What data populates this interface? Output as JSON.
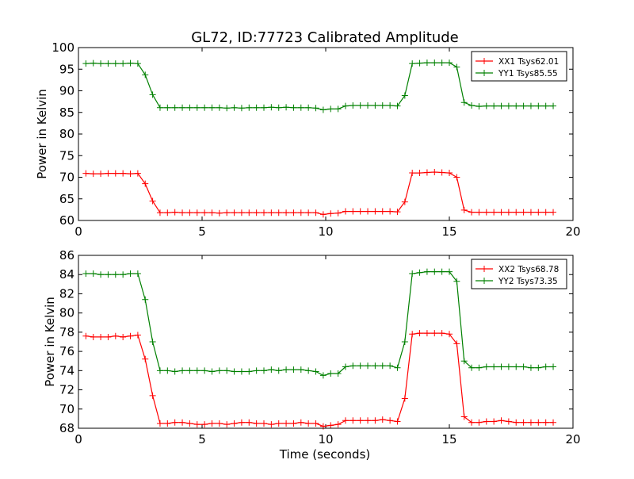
{
  "chart_data": [
    {
      "type": "line",
      "title": "GL72, ID:77723 Calibrated Amplitude",
      "xlabel": "",
      "ylabel": "Power in Kelvin",
      "xlim": [
        0,
        20
      ],
      "ylim": [
        60,
        100
      ],
      "xticks": [
        0,
        5,
        10,
        15,
        20
      ],
      "yticks": [
        60,
        65,
        70,
        75,
        80,
        85,
        90,
        95,
        100
      ],
      "grid": false,
      "legend_position": "top-right",
      "x": [
        0.3,
        0.6,
        0.9,
        1.2,
        1.5,
        1.8,
        2.1,
        2.4,
        2.7,
        3.0,
        3.3,
        3.6,
        3.9,
        4.2,
        4.5,
        4.8,
        5.1,
        5.4,
        5.7,
        6.0,
        6.3,
        6.6,
        6.9,
        7.2,
        7.5,
        7.8,
        8.1,
        8.4,
        8.7,
        9.0,
        9.3,
        9.6,
        9.9,
        10.2,
        10.5,
        10.8,
        11.1,
        11.4,
        11.7,
        12.0,
        12.3,
        12.6,
        12.9,
        13.2,
        13.5,
        13.8,
        14.1,
        14.4,
        14.7,
        15.0,
        15.3,
        15.6,
        15.9,
        16.2,
        16.5,
        16.8,
        17.1,
        17.4,
        17.7,
        18.0,
        18.3,
        18.6,
        18.9,
        19.2
      ],
      "series": [
        {
          "name": "XX1 Tsys62.01",
          "color": "#ff0000",
          "values": [
            70.9,
            70.8,
            70.8,
            70.9,
            70.9,
            70.9,
            70.8,
            70.9,
            68.5,
            64.5,
            61.8,
            61.8,
            61.9,
            61.8,
            61.8,
            61.8,
            61.8,
            61.8,
            61.7,
            61.8,
            61.8,
            61.8,
            61.8,
            61.8,
            61.8,
            61.8,
            61.8,
            61.8,
            61.8,
            61.8,
            61.8,
            61.8,
            61.4,
            61.6,
            61.7,
            62.1,
            62.1,
            62.1,
            62.1,
            62.1,
            62.1,
            62.1,
            62.0,
            64.3,
            71.0,
            71.0,
            71.1,
            71.2,
            71.1,
            71.0,
            70.0,
            62.4,
            61.9,
            61.9,
            61.9,
            61.9,
            61.9,
            61.9,
            61.9,
            61.9,
            61.9,
            61.9,
            61.9,
            61.9
          ]
        },
        {
          "name": "YY1 Tsys85.55",
          "color": "#008000",
          "values": [
            96.3,
            96.4,
            96.3,
            96.3,
            96.3,
            96.3,
            96.4,
            96.3,
            93.7,
            89.1,
            86.1,
            86.1,
            86.1,
            86.1,
            86.1,
            86.1,
            86.1,
            86.1,
            86.1,
            86.0,
            86.1,
            86.0,
            86.1,
            86.1,
            86.1,
            86.2,
            86.1,
            86.2,
            86.1,
            86.1,
            86.1,
            86.0,
            85.6,
            85.8,
            85.8,
            86.5,
            86.6,
            86.6,
            86.6,
            86.6,
            86.6,
            86.6,
            86.5,
            88.9,
            96.3,
            96.4,
            96.5,
            96.5,
            96.5,
            96.5,
            95.5,
            87.3,
            86.6,
            86.4,
            86.5,
            86.5,
            86.5,
            86.5,
            86.5,
            86.5,
            86.5,
            86.5,
            86.5,
            86.5
          ]
        }
      ]
    },
    {
      "type": "line",
      "title": "",
      "xlabel": "Time (seconds)",
      "ylabel": "Power in Kelvin",
      "xlim": [
        0,
        20
      ],
      "ylim": [
        68,
        86
      ],
      "xticks": [
        0,
        5,
        10,
        15,
        20
      ],
      "yticks": [
        68,
        70,
        72,
        74,
        76,
        78,
        80,
        82,
        84,
        86
      ],
      "grid": false,
      "legend_position": "top-right",
      "x": [
        0.3,
        0.6,
        0.9,
        1.2,
        1.5,
        1.8,
        2.1,
        2.4,
        2.7,
        3.0,
        3.3,
        3.6,
        3.9,
        4.2,
        4.5,
        4.8,
        5.1,
        5.4,
        5.7,
        6.0,
        6.3,
        6.6,
        6.9,
        7.2,
        7.5,
        7.8,
        8.1,
        8.4,
        8.7,
        9.0,
        9.3,
        9.6,
        9.9,
        10.2,
        10.5,
        10.8,
        11.1,
        11.4,
        11.7,
        12.0,
        12.3,
        12.6,
        12.9,
        13.2,
        13.5,
        13.8,
        14.1,
        14.4,
        14.7,
        15.0,
        15.3,
        15.6,
        15.9,
        16.2,
        16.5,
        16.8,
        17.1,
        17.4,
        17.7,
        18.0,
        18.3,
        18.6,
        18.9,
        19.2
      ],
      "series": [
        {
          "name": "XX2 Tsys68.78",
          "color": "#ff0000",
          "values": [
            77.6,
            77.5,
            77.5,
            77.5,
            77.6,
            77.5,
            77.6,
            77.7,
            75.2,
            71.4,
            68.5,
            68.5,
            68.6,
            68.6,
            68.5,
            68.4,
            68.4,
            68.5,
            68.5,
            68.4,
            68.5,
            68.6,
            68.6,
            68.5,
            68.5,
            68.4,
            68.5,
            68.5,
            68.5,
            68.6,
            68.5,
            68.5,
            68.2,
            68.3,
            68.4,
            68.8,
            68.8,
            68.8,
            68.8,
            68.8,
            68.9,
            68.8,
            68.7,
            71.1,
            77.8,
            77.9,
            77.9,
            77.9,
            77.9,
            77.8,
            76.8,
            69.2,
            68.6,
            68.6,
            68.7,
            68.7,
            68.8,
            68.7,
            68.6,
            68.6,
            68.6,
            68.6,
            68.6,
            68.6
          ]
        },
        {
          "name": "YY2 Tsys73.35",
          "color": "#008000",
          "values": [
            84.1,
            84.1,
            84.0,
            84.0,
            84.0,
            84.0,
            84.1,
            84.1,
            81.4,
            77.0,
            74.0,
            74.0,
            73.9,
            74.0,
            74.0,
            74.0,
            74.0,
            73.9,
            74.0,
            74.0,
            73.9,
            73.9,
            73.9,
            74.0,
            74.0,
            74.1,
            74.0,
            74.1,
            74.1,
            74.1,
            74.0,
            73.9,
            73.5,
            73.7,
            73.7,
            74.4,
            74.5,
            74.5,
            74.5,
            74.5,
            74.5,
            74.5,
            74.3,
            77.0,
            84.1,
            84.2,
            84.3,
            84.3,
            84.3,
            84.3,
            83.3,
            75.0,
            74.3,
            74.3,
            74.4,
            74.4,
            74.4,
            74.4,
            74.4,
            74.4,
            74.3,
            74.3,
            74.4,
            74.4
          ]
        }
      ]
    }
  ]
}
